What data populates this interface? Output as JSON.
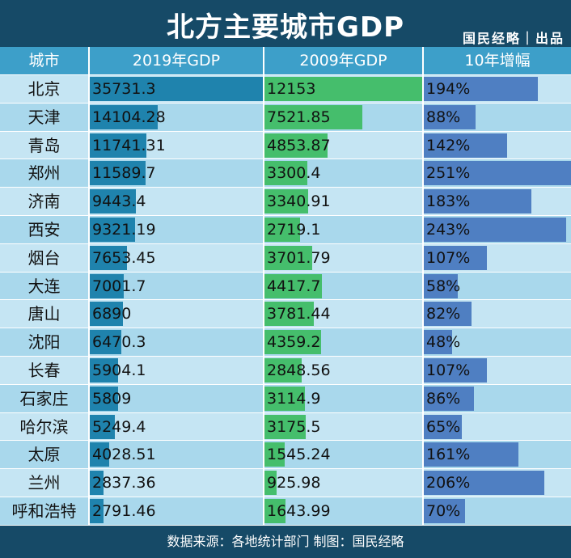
{
  "title": "北方主要城市GDP",
  "brand": "国民经略｜出品",
  "footer": "数据来源：各地统计部门   制图：国民经略",
  "colors": {
    "header_bg": "#164a67",
    "table_header": "#3d9fc9",
    "bar_2019": "#1f83ad",
    "bar_2009": "#45be6c",
    "bar_growth": "#4f7fc2",
    "row_light": "#c5e5f3",
    "row_dark": "#a9d8ec"
  },
  "chart_data": {
    "type": "table",
    "columns": [
      "城市",
      "2019年GDP",
      "2009年GDP",
      "10年增幅"
    ],
    "rows": [
      {
        "city": "北京",
        "gdp2019": "35731.3",
        "gdp2009": "12153",
        "growth": "194%"
      },
      {
        "city": "天津",
        "gdp2019": "14104.28",
        "gdp2009": "7521.85",
        "growth": "88%"
      },
      {
        "city": "青岛",
        "gdp2019": "11741.31",
        "gdp2009": "4853.87",
        "growth": "142%"
      },
      {
        "city": "郑州",
        "gdp2019": "11589.7",
        "gdp2009": "3300.4",
        "growth": "251%"
      },
      {
        "city": "济南",
        "gdp2019": "9443.4",
        "gdp2009": "3340.91",
        "growth": "183%"
      },
      {
        "city": "西安",
        "gdp2019": "9321.19",
        "gdp2009": "2719.1",
        "growth": "243%"
      },
      {
        "city": "烟台",
        "gdp2019": "7653.45",
        "gdp2009": "3701.79",
        "growth": "107%"
      },
      {
        "city": "大连",
        "gdp2019": "7001.7",
        "gdp2009": "4417.7",
        "growth": "58%"
      },
      {
        "city": "唐山",
        "gdp2019": "6890",
        "gdp2009": "3781.44",
        "growth": "82%"
      },
      {
        "city": "沈阳",
        "gdp2019": "6470.3",
        "gdp2009": "4359.2",
        "growth": "48%"
      },
      {
        "city": "长春",
        "gdp2019": "5904.1",
        "gdp2009": "2848.56",
        "growth": "107%"
      },
      {
        "city": "石家庄",
        "gdp2019": "5809",
        "gdp2009": "3114.9",
        "growth": "86%"
      },
      {
        "city": "哈尔滨",
        "gdp2019": "5249.4",
        "gdp2009": "3175.5",
        "growth": "65%"
      },
      {
        "city": "太原",
        "gdp2019": "4028.51",
        "gdp2009": "1545.24",
        "growth": "161%"
      },
      {
        "city": "兰州",
        "gdp2019": "2837.36",
        "gdp2009": "925.98",
        "growth": "206%"
      },
      {
        "city": "呼和浩特",
        "gdp2019": "2791.46",
        "gdp2009": "1643.99",
        "growth": "70%"
      }
    ]
  }
}
